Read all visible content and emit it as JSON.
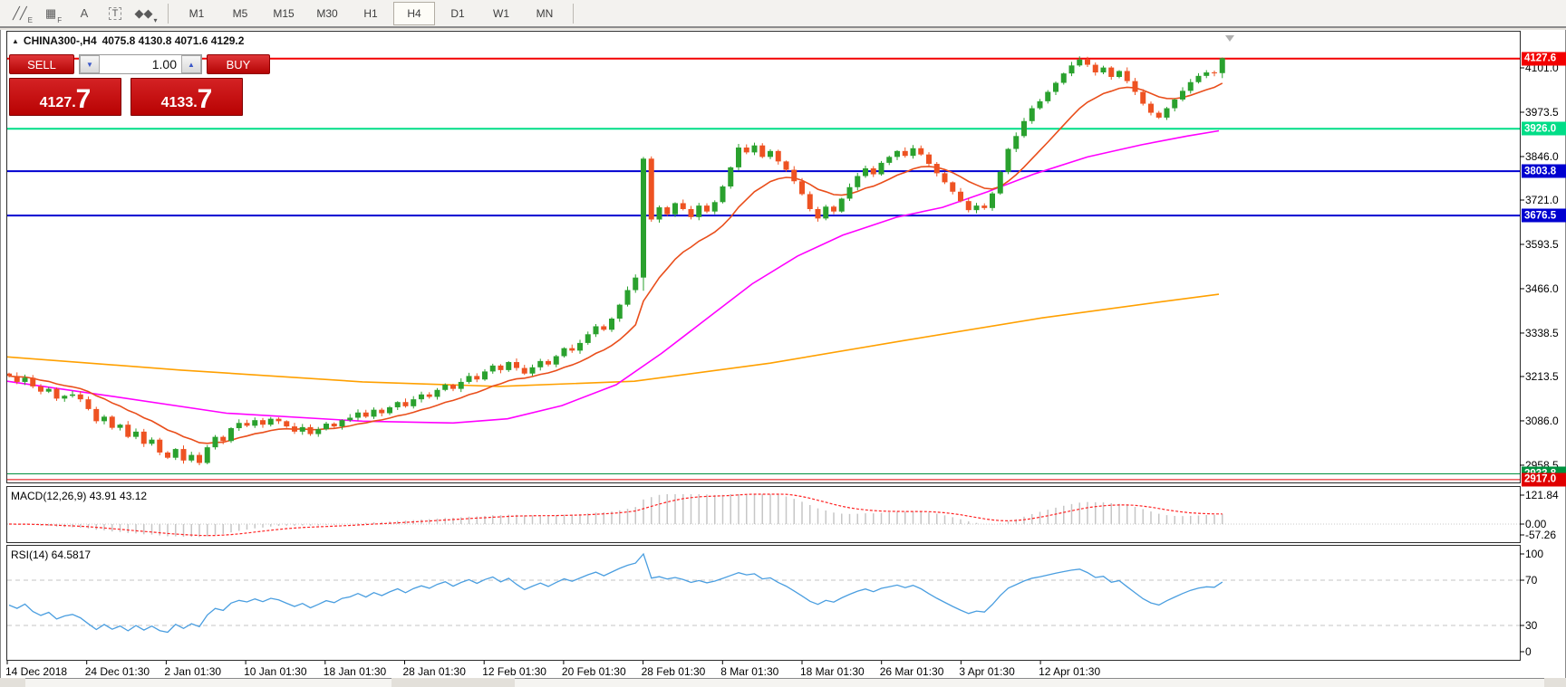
{
  "toolbar": {
    "tools": [
      {
        "name": "indicators-icon",
        "glyph": "╱╱",
        "sub": "E"
      },
      {
        "name": "grid-icon",
        "glyph": "▦",
        "sub": "F"
      },
      {
        "name": "text-label-icon",
        "glyph": "A",
        "sub": ""
      },
      {
        "name": "text-box-icon",
        "glyph": "T",
        "sub": ""
      },
      {
        "name": "objects-arrows-icon",
        "glyph": "◆◆",
        "sub": "▾"
      }
    ],
    "timeframes": [
      "M1",
      "M5",
      "M15",
      "M30",
      "H1",
      "H4",
      "D1",
      "W1",
      "MN"
    ],
    "active_timeframe": "H4"
  },
  "chart": {
    "title_arrow": "▲",
    "symbol_title": "CHINA300-,H4",
    "ohlc_text": "4075.8 4130.8 4071.6 4129.2"
  },
  "trade_panel": {
    "sell_label": "SELL",
    "buy_label": "BUY",
    "volume": "1.00",
    "spin_down_glyph": "▼",
    "spin_up_glyph": "▲",
    "sell_price": {
      "int": "4127",
      "dot": ".",
      "frac": "7"
    },
    "buy_price": {
      "int": "4133",
      "dot": ".",
      "frac": "7"
    }
  },
  "chart_data": {
    "type": "candlestick",
    "symbol": "CHINA300-",
    "timeframe": "H4",
    "ohlc_display": {
      "open": "4075.8",
      "high": "4130.8",
      "low": "4071.6",
      "close": "4129.2"
    },
    "closes": [
      3215,
      3198,
      3210,
      3185,
      3170,
      3178,
      3150,
      3158,
      3162,
      3148,
      3120,
      3085,
      3098,
      3066,
      3075,
      3040,
      3055,
      3020,
      3032,
      2995,
      2980,
      3005,
      2972,
      2988,
      2965,
      3010,
      3040,
      3028,
      3065,
      3080,
      3072,
      3088,
      3075,
      3092,
      3085,
      3070,
      3055,
      3068,
      3048,
      3062,
      3078,
      3070,
      3088,
      3095,
      3110,
      3098,
      3118,
      3108,
      3125,
      3140,
      3128,
      3148,
      3162,
      3155,
      3175,
      3190,
      3178,
      3198,
      3215,
      3205,
      3228,
      3245,
      3232,
      3255,
      3238,
      3222,
      3240,
      3258,
      3248,
      3272,
      3295,
      3288,
      3310,
      3335,
      3358,
      3348,
      3380,
      3420,
      3462,
      3498,
      3840,
      3665,
      3700,
      3680,
      3712,
      3695,
      3672,
      3705,
      3688,
      3715,
      3760,
      3815,
      3872,
      3858,
      3878,
      3845,
      3862,
      3832,
      3808,
      3775,
      3738,
      3695,
      3668,
      3702,
      3688,
      3725,
      3758,
      3790,
      3812,
      3795,
      3828,
      3845,
      3862,
      3848,
      3870,
      3852,
      3825,
      3798,
      3772,
      3745,
      3718,
      3692,
      3705,
      3698,
      3740,
      3802,
      3868,
      3905,
      3948,
      3985,
      4005,
      4032,
      4058,
      4085,
      4108,
      4125,
      4110,
      4088,
      4102,
      4075,
      4092,
      4063,
      4032,
      3998,
      3972,
      3958,
      3985,
      4010,
      4035,
      4060,
      4078,
      4088,
      4086,
      4129
    ],
    "wick_low_overrides": {
      "24": 2958.5,
      "80": 3460,
      "153": 4071.6
    },
    "wick_high_overrides": {
      "80": 3845,
      "153": 4130.8
    },
    "ma_gold_anchors": [
      [
        8,
        3270
      ],
      [
        200,
        3232
      ],
      [
        400,
        3198
      ],
      [
        550,
        3185
      ],
      [
        700,
        3200
      ],
      [
        850,
        3252
      ],
      [
        1000,
        3318
      ],
      [
        1150,
        3382
      ],
      [
        1280,
        3428
      ],
      [
        1345,
        3450
      ]
    ],
    "ma_magenta_anchors": [
      [
        8,
        3200
      ],
      [
        120,
        3158
      ],
      [
        250,
        3108
      ],
      [
        400,
        3085
      ],
      [
        500,
        3080
      ],
      [
        560,
        3092
      ],
      [
        620,
        3130
      ],
      [
        680,
        3190
      ],
      [
        730,
        3280
      ],
      [
        780,
        3380
      ],
      [
        830,
        3480
      ],
      [
        880,
        3560
      ],
      [
        930,
        3620
      ],
      [
        990,
        3672
      ],
      [
        1040,
        3700
      ],
      [
        1090,
        3745
      ],
      [
        1140,
        3795
      ],
      [
        1200,
        3845
      ],
      [
        1260,
        3880
      ],
      [
        1310,
        3905
      ],
      [
        1345,
        3920
      ]
    ],
    "price_axis_ticks": [
      "4101.0",
      "3973.5",
      "3846.0",
      "3721.0",
      "3593.5",
      "3466.0",
      "3338.5",
      "3213.5",
      "3086.0",
      "2958.5"
    ],
    "price_lines": [
      {
        "price": 4127.6,
        "label": "4127.6",
        "color": "#f30000",
        "width": 2
      },
      {
        "price": 3926.0,
        "label": "3926.0",
        "color": "#00dd87",
        "width": 2
      },
      {
        "price": 3803.8,
        "label": "3803.8",
        "color": "#0000d0",
        "width": 2
      },
      {
        "price": 3676.5,
        "label": "3676.5",
        "color": "#0000d0",
        "width": 2
      },
      {
        "price": 2933.8,
        "label": "2933.8",
        "color": "#00913f",
        "width": 1
      },
      {
        "price": 2917.0,
        "label": "2917.0",
        "color": "#e00000",
        "width": 1
      }
    ],
    "macd": {
      "label": "MACD(12,26,9) 43.91 43.12",
      "axis": [
        "121.84",
        "0.00",
        "-57.26"
      ]
    },
    "rsi": {
      "label": "RSI(14) 64.5817",
      "axis": [
        "100",
        "70",
        "30",
        "0"
      ],
      "levels": [
        70,
        30
      ]
    },
    "time_axis": [
      "14 Dec 2018",
      "24 Dec 01:30",
      "2 Jan 01:30",
      "10 Jan 01:30",
      "18 Jan 01:30",
      "28 Jan 01:30",
      "12 Feb 01:30",
      "20 Feb 01:30",
      "28 Feb 01:30",
      "8 Mar 01:30",
      "18 Mar 01:30",
      "26 Mar 01:30",
      "3 Apr 01:30",
      "12 Apr 01:30"
    ],
    "colors": {
      "up": "#2aa12e",
      "down": "#ee5222",
      "fast_ma": "#e94e1b",
      "magenta_ma": "#ff00ff",
      "gold_ma": "#ffa000",
      "rsi_line": "#4a9ee0",
      "macd_bar": "#c6c6c6",
      "macd_signal": "#ff2222",
      "level_dash": "#c4c4c4",
      "frame": "#2b2b2b"
    }
  }
}
